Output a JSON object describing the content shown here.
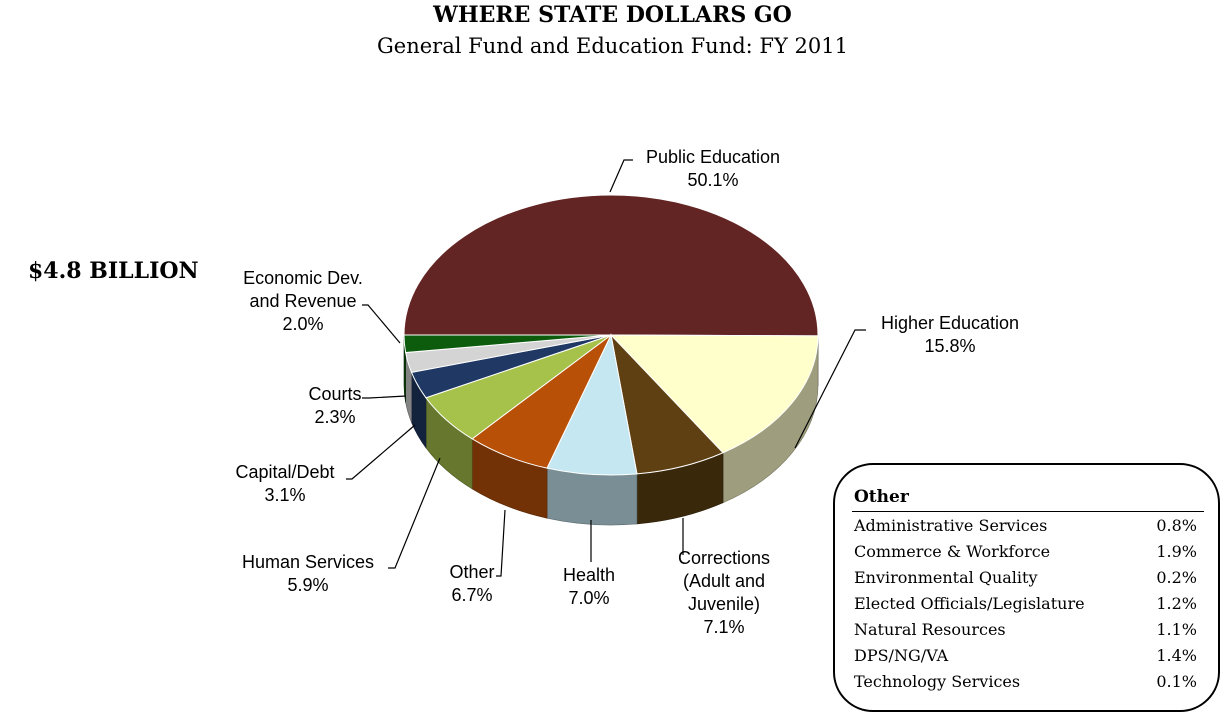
{
  "title": "WHERE STATE DOLLARS GO",
  "subtitle": "General Fund and Education Fund:  FY 2011",
  "total_label": "$4.8 BILLION",
  "chart_data": {
    "type": "pie",
    "title": "WHERE STATE DOLLARS GO",
    "subtitle": "General Fund and Education Fund:  FY 2011",
    "unit": "%",
    "slices": [
      {
        "label": "Public Education",
        "value": 50.1,
        "value_label": "50.1%",
        "color": "#632523"
      },
      {
        "label": "Higher Education",
        "value": 15.8,
        "value_label": "15.8%",
        "color": "#FFFFCC"
      },
      {
        "label": "Corrections (Adult and Juvenile)",
        "value": 7.1,
        "value_label": "7.1%",
        "color": "#5E4012"
      },
      {
        "label": "Health",
        "value": 7.0,
        "value_label": "7.0%",
        "color": "#C5E7F1"
      },
      {
        "label": "Other",
        "value": 6.7,
        "value_label": "6.7%",
        "color": "#B85008"
      },
      {
        "label": "Human Services",
        "value": 5.9,
        "value_label": "5.9%",
        "color": "#A6C24A"
      },
      {
        "label": "Capital/Debt",
        "value": 3.1,
        "value_label": "3.1%",
        "color": "#1F3864"
      },
      {
        "label": "Courts",
        "value": 2.3,
        "value_label": "2.3%",
        "color": "#D4D4D4"
      },
      {
        "label": "Economic Dev. and Revenue",
        "value": 2.0,
        "value_label": "2.0%",
        "color": "#0D5C0D"
      }
    ]
  },
  "other_box": {
    "title": "Other",
    "rows": [
      {
        "name": "Administrative Services",
        "value": "0.8%"
      },
      {
        "name": "Commerce & Workforce",
        "value": "1.9%"
      },
      {
        "name": "Environmental Quality",
        "value": "0.2%"
      },
      {
        "name": "Elected Officials/Legislature",
        "value": "1.2%"
      },
      {
        "name": "Natural Resources",
        "value": "1.1%"
      },
      {
        "name": "DPS/NG/VA",
        "value": "1.4%"
      },
      {
        "name": "Technology Services",
        "value": "0.1%"
      }
    ]
  }
}
